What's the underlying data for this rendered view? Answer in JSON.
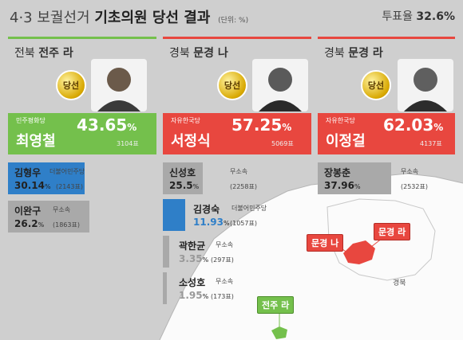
{
  "header": {
    "title_prefix": "4·3 보궐선거",
    "title_main": "기초의원 당선 결과",
    "unit": "(단위: %)",
    "turnout_label": "투표율",
    "turnout_value": "32.6%"
  },
  "badge_label": "당선",
  "columns": [
    {
      "region_prefix": "전북",
      "region_name": "전주 라",
      "accent": "#74c04c",
      "winner": {
        "party": "민주평화당",
        "name": "최영철",
        "pct": "43.65",
        "pct_unit": "%",
        "votes": "3104표",
        "color": "#74c04c"
      },
      "others": [
        {
          "name": "김형우",
          "party": "더불어민주당",
          "pct": "30.14",
          "pct_unit": "%",
          "votes": "(2143표)",
          "share": 30.14,
          "color": "#2f7fc8"
        },
        {
          "name": "이완구",
          "party": "무소속",
          "pct": "26.2",
          "pct_unit": "%",
          "votes": "(1863표)",
          "share": 26.2,
          "color": "#a9a9a9"
        }
      ]
    },
    {
      "region_prefix": "경북",
      "region_name": "문경 나",
      "accent": "#e8473f",
      "winner": {
        "party": "자유한국당",
        "name": "서정식",
        "pct": "57.25",
        "pct_unit": "%",
        "votes": "5069표",
        "color": "#e8473f"
      },
      "others": [
        {
          "name": "신성호",
          "party": "무소속",
          "pct": "25.5",
          "pct_unit": "%",
          "votes": "(2258표)",
          "share": 25.5,
          "color": "#a9a9a9"
        },
        {
          "name": "김경숙",
          "party": "더불어민주당",
          "pct": "11.93",
          "pct_unit": "%",
          "votes": "(1057표)",
          "share": 11.93,
          "color": "#2f7fc8"
        },
        {
          "name": "곽한균",
          "party": "무소속",
          "pct": "3.35",
          "pct_unit": "%",
          "votes": "(297표)",
          "share": 3.35,
          "color": "#a9a9a9"
        },
        {
          "name": "소성호",
          "party": "무소속",
          "pct": "1.95",
          "pct_unit": "%",
          "votes": "(173표)",
          "share": 1.95,
          "color": "#a9a9a9"
        }
      ]
    },
    {
      "region_prefix": "경북",
      "region_name": "문경 라",
      "accent": "#e8473f",
      "winner": {
        "party": "자유한국당",
        "name": "이정걸",
        "pct": "62.03",
        "pct_unit": "%",
        "votes": "4137표",
        "color": "#e8473f"
      },
      "others": [
        {
          "name": "장봉춘",
          "party": "무소속",
          "pct": "37.96",
          "pct_unit": "%",
          "votes": "(2532표)",
          "share": 37.96,
          "color": "#a9a9a9"
        }
      ]
    }
  ],
  "map": {
    "province": "경북",
    "labels": [
      {
        "text": "문경 나",
        "style": "red"
      },
      {
        "text": "문경 라",
        "style": "red"
      },
      {
        "text": "전주 라",
        "style": "green"
      }
    ]
  }
}
